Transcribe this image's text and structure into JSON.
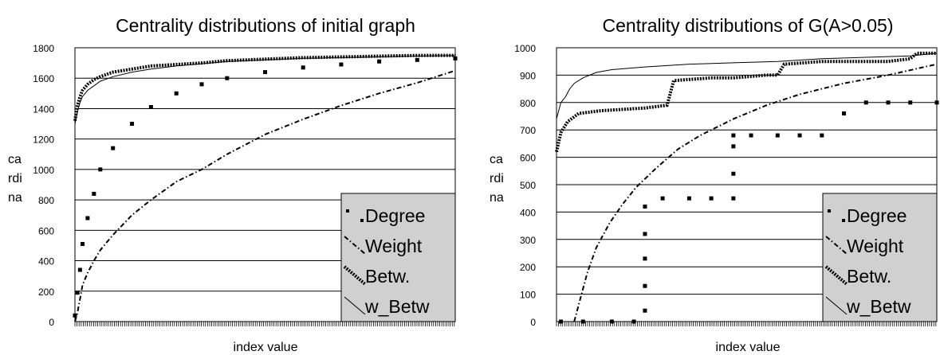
{
  "chart_data": [
    {
      "type": "line",
      "title": "Centrality distributions of initial graph",
      "xlabel": "index value",
      "ylabel": "cardinality",
      "ylim": [
        0,
        1800
      ],
      "yticks": [
        "0",
        "200",
        "400",
        "600",
        "800",
        "1000",
        "1200",
        "1400",
        "1600",
        "1800"
      ],
      "grid": true,
      "legend_position": "bottom-right",
      "x": [
        0,
        2,
        4,
        6,
        10,
        15,
        20,
        30,
        45,
        60,
        80,
        100
      ],
      "series": [
        {
          "name": "Degree",
          "style": "scattered squares",
          "values": [
            40,
            190,
            340,
            510,
            680,
            840,
            1000,
            1140,
            1300,
            1410,
            1500,
            1560
          ]
        },
        {
          "name": "Weight",
          "style": "dash-dot",
          "values": [
            0,
            60,
            150,
            240,
            320,
            400,
            470,
            570,
            700,
            800,
            920,
            1000
          ]
        },
        {
          "name": "Betw.",
          "style": "dotted",
          "values": [
            1320,
            1420,
            1480,
            1520,
            1560,
            1590,
            1610,
            1640,
            1660,
            1680,
            1690,
            1700
          ]
        },
        {
          "name": "w_Betw",
          "style": "solid thin",
          "values": [
            1300,
            1380,
            1440,
            1480,
            1520,
            1550,
            1580,
            1610,
            1640,
            1660,
            1680,
            1695
          ]
        }
      ],
      "series_tail": {
        "x": [
          120,
          150,
          180,
          210,
          240,
          270,
          300
        ],
        "Degree": [
          1600,
          1640,
          1670,
          1690,
          1710,
          1720,
          1730
        ],
        "Weight": [
          1100,
          1230,
          1330,
          1420,
          1500,
          1570,
          1650
        ],
        "Betw.": [
          1715,
          1725,
          1735,
          1740,
          1745,
          1750,
          1750
        ],
        "w_Betw": [
          1710,
          1720,
          1730,
          1735,
          1740,
          1745,
          1748
        ]
      }
    },
    {
      "type": "line",
      "title": "Centrality distributions of G(A>0.05)",
      "xlabel": "index value",
      "ylabel": "cardinality",
      "ylim": [
        0,
        1000
      ],
      "yticks": [
        "0",
        "100",
        "200",
        "300",
        "400",
        "500",
        "600",
        "700",
        "800",
        "900",
        "1000"
      ],
      "grid": true,
      "legend_position": "bottom-right",
      "series": [
        {
          "name": "Degree",
          "style": "scattered squares",
          "x": [
            2,
            12,
            25,
            35,
            40,
            40,
            40,
            40,
            40,
            48,
            60,
            70,
            80,
            80,
            80,
            80,
            88,
            100,
            110,
            120,
            130,
            140,
            150,
            160,
            172
          ],
          "values": [
            0,
            0,
            0,
            0,
            40,
            130,
            230,
            320,
            420,
            450,
            450,
            450,
            450,
            540,
            640,
            680,
            680,
            680,
            680,
            680,
            760,
            800,
            800,
            800,
            800
          ]
        },
        {
          "name": "Weight",
          "style": "dash-dot",
          "x": [
            8,
            10,
            14,
            18,
            24,
            30,
            36,
            45,
            55,
            65,
            80,
            95,
            110,
            130,
            150,
            172
          ],
          "values": [
            0,
            60,
            180,
            270,
            360,
            430,
            490,
            560,
            630,
            680,
            740,
            790,
            830,
            870,
            900,
            940
          ]
        },
        {
          "name": "Betw.",
          "style": "dotted",
          "x": [
            0,
            2,
            5,
            10,
            20,
            40,
            50,
            53,
            70,
            80,
            95,
            100,
            103,
            120,
            150,
            160,
            163,
            172
          ],
          "values": [
            620,
            690,
            730,
            760,
            770,
            780,
            790,
            880,
            890,
            890,
            900,
            900,
            940,
            950,
            950,
            960,
            980,
            980
          ]
        },
        {
          "name": "w_Betw",
          "style": "solid thin",
          "x": [
            0,
            2,
            4,
            6,
            8,
            12,
            18,
            25,
            40,
            60,
            80,
            100,
            120,
            140,
            160,
            172
          ],
          "values": [
            740,
            800,
            820,
            850,
            870,
            890,
            910,
            920,
            930,
            940,
            945,
            950,
            960,
            965,
            970,
            980
          ]
        }
      ]
    }
  ]
}
